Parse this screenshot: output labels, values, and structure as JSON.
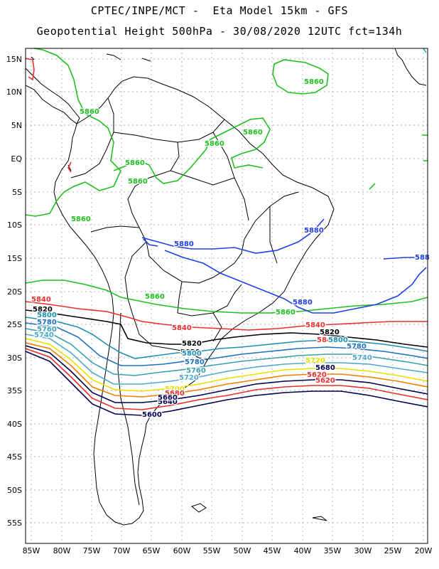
{
  "title_line1": "CPTEC/INPE/MCT -  Eta Model 15km - GFS",
  "title_line2": "Geopotential Height 500hPa - 30/08/2020 12UTC fct=134h",
  "lat_labels": [
    "15N",
    "10N",
    "5N",
    "EQ",
    "5S",
    "10S",
    "15S",
    "20S",
    "25S",
    "30S",
    "35S",
    "40S",
    "45S",
    "50S",
    "55S"
  ],
  "lon_labels": [
    "85W",
    "80W",
    "75W",
    "70W",
    "65W",
    "60W",
    "55W",
    "50W",
    "45W",
    "40W",
    "35W",
    "30W",
    "25W",
    "20W"
  ],
  "contour_colors": {
    "5880": "#2040e0",
    "5860": "#20c020",
    "5840": "#e83030",
    "5820": "#000000",
    "5800": "#2090b0",
    "5780": "#2070c0",
    "5760": "#3aa0b0",
    "5740": "#50a8c8",
    "5720": "#e8e000",
    "5700": "#f08000",
    "5680": "#000050"
  },
  "contour_labels": [
    {
      "text": "5860",
      "color": "#20c020"
    },
    {
      "text": "5860",
      "color": "#20c020"
    },
    {
      "text": "5860",
      "color": "#20c020"
    },
    {
      "text": "5860",
      "color": "#20c020"
    },
    {
      "text": "5860",
      "color": "#20c020"
    },
    {
      "text": "5860",
      "color": "#20c020"
    },
    {
      "text": "5860",
      "color": "#20c020"
    },
    {
      "text": "5860",
      "color": "#20c020"
    },
    {
      "text": "5860",
      "color": "#20c020"
    },
    {
      "text": "5880",
      "color": "#2040e0"
    },
    {
      "text": "5880",
      "color": "#2040e0"
    },
    {
      "text": "5880",
      "color": "#2040e0"
    },
    {
      "text": "588",
      "color": "#2040e0"
    },
    {
      "text": "5840",
      "color": "#e83030"
    },
    {
      "text": "5840",
      "color": "#e83030"
    },
    {
      "text": "5840",
      "color": "#e83030"
    },
    {
      "text": "5840",
      "color": "#e83030"
    },
    {
      "text": "5820",
      "color": "#000000"
    },
    {
      "text": "5820",
      "color": "#000000"
    },
    {
      "text": "5820",
      "color": "#000000"
    },
    {
      "text": "5820",
      "color": "#000000"
    },
    {
      "text": "5800",
      "color": "#2090b0"
    },
    {
      "text": "5800",
      "color": "#2090b0"
    },
    {
      "text": "5800",
      "color": "#2090b0"
    },
    {
      "text": "5780",
      "color": "#2070c0"
    },
    {
      "text": "5780",
      "color": "#2070c0"
    },
    {
      "text": "5780",
      "color": "#2070c0"
    },
    {
      "text": "5760",
      "color": "#3aa0b0"
    },
    {
      "text": "5760",
      "color": "#3aa0b0"
    },
    {
      "text": "5740",
      "color": "#50a8c8"
    },
    {
      "text": "5740",
      "color": "#50a8c8"
    },
    {
      "text": "5720",
      "color": "#50a8c8"
    },
    {
      "text": "5720",
      "color": "#e8e000"
    },
    {
      "text": "5700",
      "color": "#e8e000"
    },
    {
      "text": "5680",
      "color": "#000050"
    },
    {
      "text": "5680",
      "color": "#e83030"
    },
    {
      "text": "5620",
      "color": "#e83030"
    },
    {
      "text": "5620",
      "color": "#e83030"
    },
    {
      "text": "5600",
      "color": "#000050"
    },
    {
      "text": "5640",
      "color": "#000050"
    },
    {
      "text": "5660",
      "color": "#000050"
    }
  ]
}
